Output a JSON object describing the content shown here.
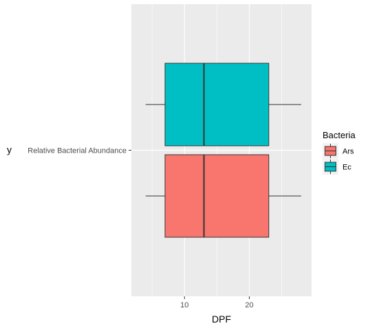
{
  "chart_data": {
    "type": "boxplot",
    "orientation": "horizontal",
    "xlabel": "DPF",
    "ylabel": "y",
    "category_label": "Relative Bacterial Abundance",
    "xlim": [
      1.8,
      29.6
    ],
    "xticks": [
      10,
      20
    ],
    "x_minor_ticks": [
      5,
      15,
      25
    ],
    "grid": true,
    "legend": {
      "title": "Bacteria",
      "position": "right"
    },
    "series": [
      {
        "name": "Ars",
        "color": "#F8766D",
        "min": 4,
        "q1": 7,
        "median": 13,
        "q3": 23,
        "max": 28
      },
      {
        "name": "Ec",
        "color": "#00BFC4",
        "min": 4,
        "q1": 7,
        "median": 13,
        "q3": 23,
        "max": 28
      }
    ]
  }
}
